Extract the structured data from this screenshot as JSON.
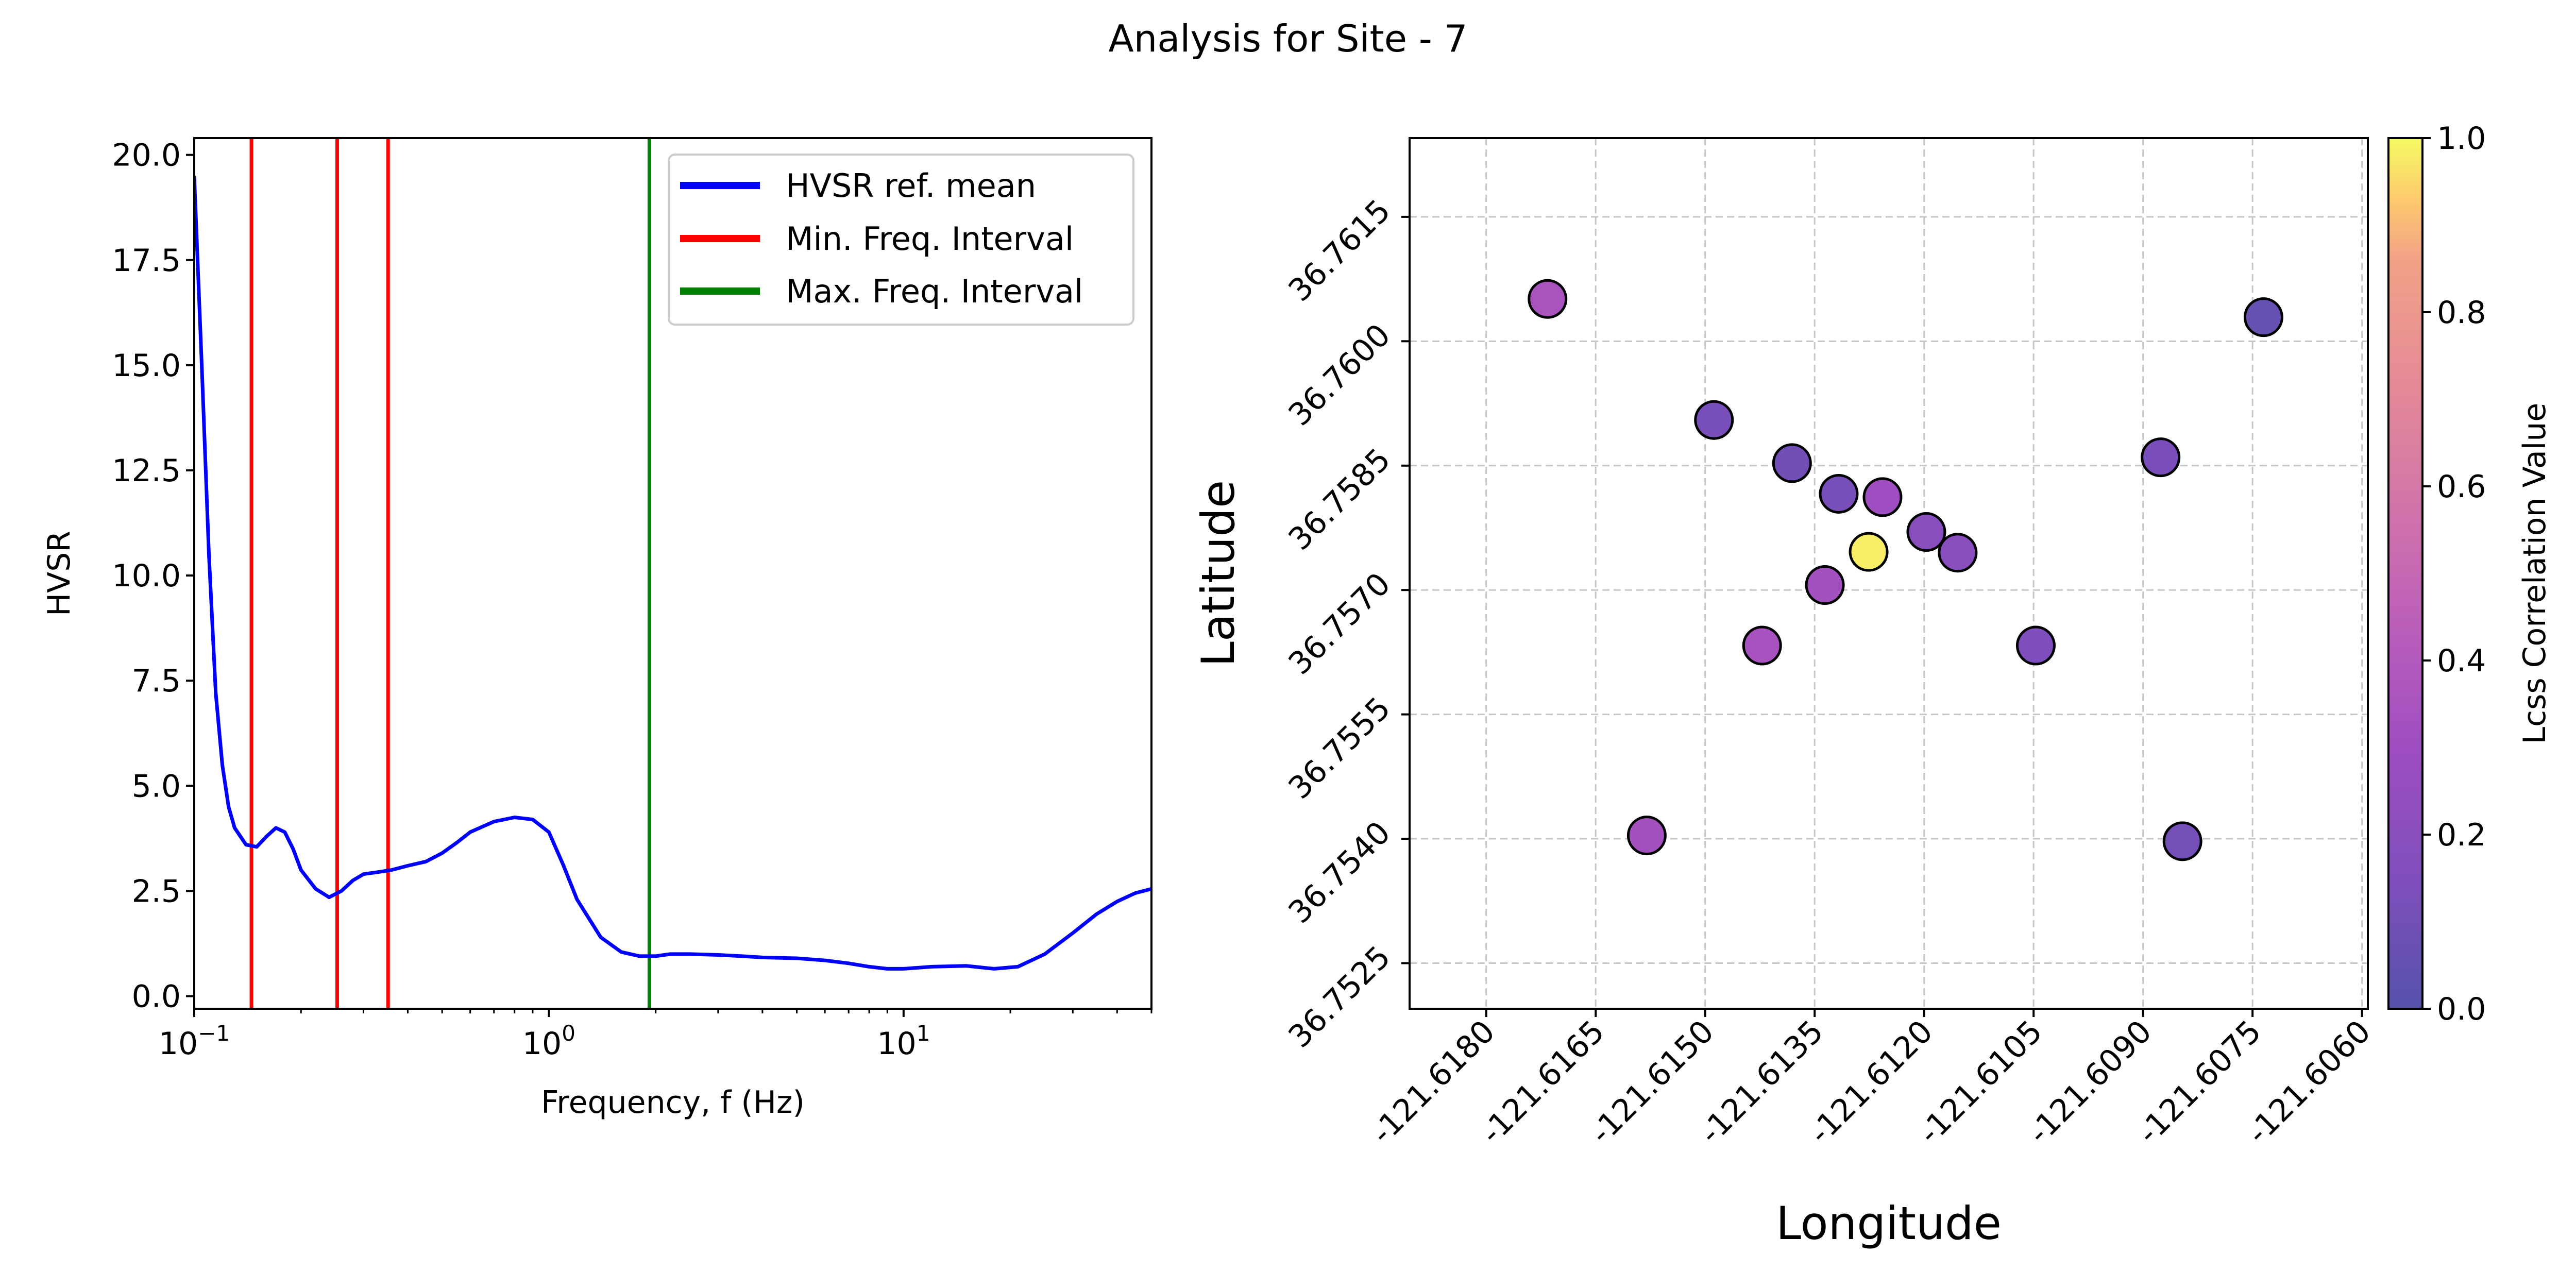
{
  "figure": {
    "title": "Analysis for Site - 7"
  },
  "chart_data": [
    {
      "type": "line",
      "xscale": "log",
      "xlabel": "Frequency, f (Hz)",
      "ylabel": "HVSR",
      "xlim": [
        0.1,
        50
      ],
      "ylim": [
        -0.3,
        20.4
      ],
      "x_ticks": [
        {
          "value": 0.1,
          "mantissa": "10",
          "exp": "−1"
        },
        {
          "value": 1,
          "mantissa": "10",
          "exp": "0"
        },
        {
          "value": 10,
          "mantissa": "10",
          "exp": "1"
        }
      ],
      "y_ticks": [
        {
          "value": 0,
          "label": "0.0"
        },
        {
          "value": 2.5,
          "label": "2.5"
        },
        {
          "value": 5,
          "label": "5.0"
        },
        {
          "value": 7.5,
          "label": "7.5"
        },
        {
          "value": 10,
          "label": "10.0"
        },
        {
          "value": 12.5,
          "label": "12.5"
        },
        {
          "value": 15,
          "label": "15.0"
        },
        {
          "value": 17.5,
          "label": "17.5"
        },
        {
          "value": 20,
          "label": "20.0"
        }
      ],
      "series": [
        {
          "name": "HVSR ref. mean",
          "color": "#0000ff",
          "x": [
            0.1,
            0.105,
            0.11,
            0.115,
            0.12,
            0.125,
            0.13,
            0.14,
            0.15,
            0.16,
            0.17,
            0.18,
            0.19,
            0.2,
            0.22,
            0.24,
            0.26,
            0.28,
            0.3,
            0.33,
            0.36,
            0.4,
            0.45,
            0.5,
            0.55,
            0.6,
            0.7,
            0.8,
            0.9,
            1.0,
            1.1,
            1.2,
            1.4,
            1.6,
            1.8,
            2.0,
            2.2,
            2.5,
            3.0,
            3.5,
            4.0,
            5.0,
            6.0,
            7.0,
            8.0,
            9.0,
            10,
            12,
            15,
            18,
            21,
            25,
            30,
            35,
            40,
            45,
            50
          ],
          "y": [
            19.5,
            15.0,
            10.5,
            7.2,
            5.5,
            4.5,
            4.0,
            3.6,
            3.55,
            3.8,
            4.0,
            3.9,
            3.5,
            3.0,
            2.55,
            2.35,
            2.5,
            2.75,
            2.9,
            2.95,
            3.0,
            3.1,
            3.2,
            3.4,
            3.65,
            3.9,
            4.15,
            4.25,
            4.2,
            3.9,
            3.1,
            2.3,
            1.4,
            1.05,
            0.95,
            0.95,
            1.0,
            1.0,
            0.98,
            0.95,
            0.92,
            0.9,
            0.85,
            0.78,
            0.7,
            0.65,
            0.65,
            0.7,
            0.72,
            0.65,
            0.7,
            1.0,
            1.5,
            1.95,
            2.25,
            2.45,
            2.55
          ]
        }
      ],
      "vlines": [
        {
          "series": "Min. Freq. Interval",
          "x": 0.145,
          "color": "#ff0000"
        },
        {
          "series": "Min. Freq. Interval",
          "x": 0.253,
          "color": "#ff0000"
        },
        {
          "series": "Min. Freq. Interval",
          "x": 0.352,
          "color": "#ff0000"
        },
        {
          "series": "Max. Freq. Interval",
          "x": 1.92,
          "color": "#008000"
        }
      ],
      "legend": {
        "location": "top-right",
        "entries": [
          {
            "label": "HVSR ref. mean",
            "color": "#0000ff"
          },
          {
            "label": "Min. Freq. Interval",
            "color": "#ff0000"
          },
          {
            "label": "Max. Freq. Interval",
            "color": "#008000"
          }
        ]
      }
    },
    {
      "type": "scatter",
      "xlabel": "Longitude",
      "ylabel": "Latitude",
      "xlim": [
        -121.61905,
        -121.60592
      ],
      "ylim": [
        36.75195,
        36.76245
      ],
      "grid": true,
      "x_ticks": [
        {
          "value": -121.618,
          "label": "-121.6180"
        },
        {
          "value": -121.6165,
          "label": "-121.6165"
        },
        {
          "value": -121.615,
          "label": "-121.6150"
        },
        {
          "value": -121.6135,
          "label": "-121.6135"
        },
        {
          "value": -121.612,
          "label": "-121.6120"
        },
        {
          "value": -121.6105,
          "label": "-121.6105"
        },
        {
          "value": -121.609,
          "label": "-121.6090"
        },
        {
          "value": -121.6075,
          "label": "-121.6075"
        },
        {
          "value": -121.606,
          "label": "-121.6060"
        }
      ],
      "y_ticks": [
        {
          "value": 36.7525,
          "label": "36.7525"
        },
        {
          "value": 36.754,
          "label": "36.7540"
        },
        {
          "value": 36.7555,
          "label": "36.7555"
        },
        {
          "value": 36.757,
          "label": "36.7570"
        },
        {
          "value": 36.7585,
          "label": "36.7585"
        },
        {
          "value": 36.76,
          "label": "36.7600"
        },
        {
          "value": 36.7615,
          "label": "36.7615"
        }
      ],
      "colormap": "plasma",
      "points": [
        {
          "lon": -121.61716,
          "lat": 36.76051,
          "value": 0.35
        },
        {
          "lon": -121.6158,
          "lat": 36.75404,
          "value": 0.33
        },
        {
          "lon": -121.61488,
          "lat": 36.75905,
          "value": 0.12
        },
        {
          "lon": -121.61422,
          "lat": 36.75633,
          "value": 0.34
        },
        {
          "lon": -121.61381,
          "lat": 36.75853,
          "value": 0.1
        },
        {
          "lon": -121.61317,
          "lat": 36.75816,
          "value": 0.12
        },
        {
          "lon": -121.61336,
          "lat": 36.75706,
          "value": 0.33
        },
        {
          "lon": -121.61276,
          "lat": 36.75746,
          "value": 0.98
        },
        {
          "lon": -121.61257,
          "lat": 36.75812,
          "value": 0.3
        },
        {
          "lon": -121.61197,
          "lat": 36.7577,
          "value": 0.2
        },
        {
          "lon": -121.61154,
          "lat": 36.75745,
          "value": 0.2
        },
        {
          "lon": -121.61047,
          "lat": 36.75633,
          "value": 0.14
        },
        {
          "lon": -121.60876,
          "lat": 36.7586,
          "value": 0.13
        },
        {
          "lon": -121.60846,
          "lat": 36.75397,
          "value": 0.11
        },
        {
          "lon": -121.60735,
          "lat": 36.76029,
          "value": 0.06
        }
      ],
      "colorbar": {
        "label": "Lcss Correlation Value",
        "range": [
          0,
          1
        ],
        "ticks": [
          {
            "value": 0,
            "label": "0.0"
          },
          {
            "value": 0.2,
            "label": "0.2"
          },
          {
            "value": 0.4,
            "label": "0.4"
          },
          {
            "value": 0.6,
            "label": "0.6"
          },
          {
            "value": 0.8,
            "label": "0.8"
          },
          {
            "value": 1,
            "label": "1.0"
          }
        ],
        "alpha": 0.7
      }
    }
  ]
}
